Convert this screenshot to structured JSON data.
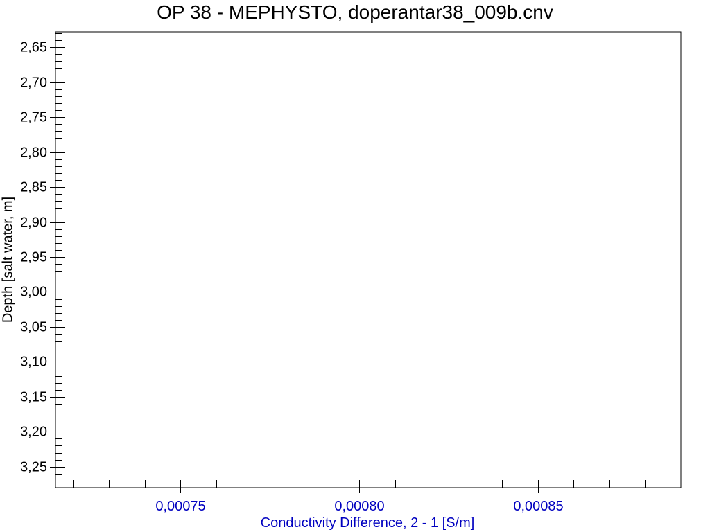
{
  "chart_data": {
    "type": "line",
    "title": "OP 38 - MEPHYSTO, doperantar38_009b.cnv",
    "xlabel": "Conductivity Difference, 2 - 1 [S/m]",
    "ylabel": "Depth [salt water, m]",
    "xlim": [
      0.000715,
      0.00089
    ],
    "ylim": [
      2.628,
      3.28
    ],
    "y_inverted": true,
    "x_major_ticks": [
      0.00075,
      0.0008,
      0.00085
    ],
    "x_tick_labels": [
      "0,00075",
      "0,00080",
      "0,00085"
    ],
    "x_minor_ticks": [
      0.00072,
      0.00073,
      0.00074,
      0.00076,
      0.00077,
      0.00078,
      0.00079,
      0.00081,
      0.00082,
      0.00083,
      0.00084,
      0.00086,
      0.00087,
      0.00088
    ],
    "y_major_ticks": [
      2.65,
      2.7,
      2.75,
      2.8,
      2.85,
      2.9,
      2.95,
      3.0,
      3.05,
      3.1,
      3.15,
      3.2,
      3.25
    ],
    "y_tick_labels": [
      "2,65",
      "2,70",
      "2,75",
      "2,80",
      "2,85",
      "2,90",
      "2,95",
      "3,00",
      "3,05",
      "3,10",
      "3,15",
      "3,20",
      "3,25"
    ],
    "y_minor_step": 0.01,
    "grid": false,
    "series": [],
    "colors": {
      "title": "#000000",
      "x_axis_text": "#0000c0",
      "y_axis_text": "#000000",
      "frame": "#000000"
    }
  }
}
